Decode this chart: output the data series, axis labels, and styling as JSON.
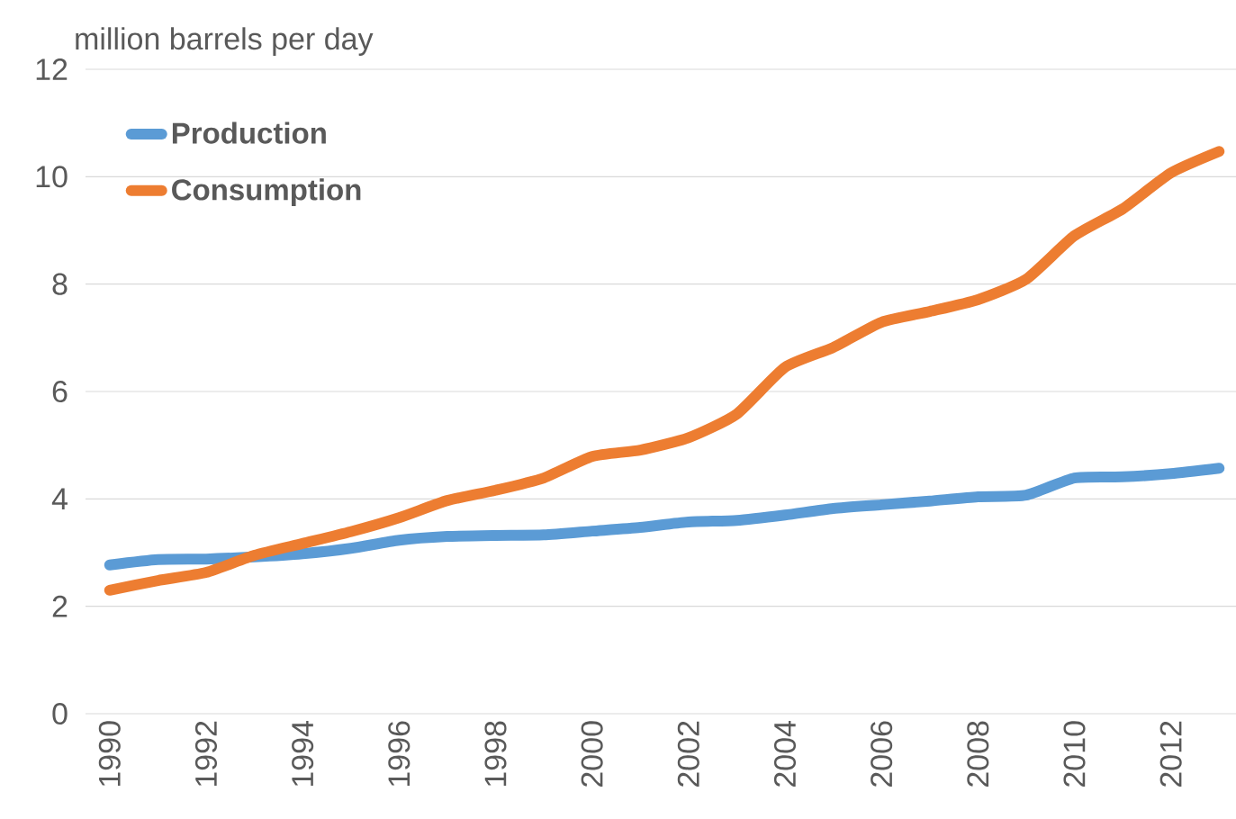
{
  "chart_data": {
    "type": "line",
    "ylabel": "million barrels per day",
    "x": [
      1990,
      1991,
      1992,
      1993,
      1994,
      1995,
      1996,
      1997,
      1998,
      1999,
      2000,
      2001,
      2002,
      2003,
      2004,
      2005,
      2006,
      2007,
      2008,
      2009,
      2010,
      2011,
      2012,
      2013
    ],
    "series": [
      {
        "name": "Production",
        "color": "#5b9bd5",
        "values": [
          2.77,
          2.87,
          2.88,
          2.92,
          2.98,
          3.08,
          3.23,
          3.3,
          3.32,
          3.33,
          3.4,
          3.47,
          3.57,
          3.6,
          3.7,
          3.82,
          3.89,
          3.96,
          4.04,
          4.07,
          4.39,
          4.41,
          4.47,
          4.57
        ]
      },
      {
        "name": "Consumption",
        "color": "#ed7d31",
        "values": [
          2.3,
          2.48,
          2.63,
          2.95,
          3.17,
          3.39,
          3.65,
          3.97,
          4.16,
          4.39,
          4.79,
          4.91,
          5.14,
          5.58,
          6.45,
          6.82,
          7.29,
          7.49,
          7.71,
          8.09,
          8.9,
          9.4,
          10.07,
          10.47
        ]
      }
    ],
    "xlim": [
      1989.5,
      2013.35
    ],
    "xticks": [
      1990,
      1992,
      1994,
      1996,
      1998,
      2000,
      2002,
      2004,
      2006,
      2008,
      2010,
      2012
    ],
    "ylim": [
      0,
      12
    ],
    "yticks": [
      0,
      2,
      4,
      6,
      8,
      10,
      12
    ],
    "grid": "y",
    "legend": "top left",
    "marker": "none",
    "line_style": "solid"
  }
}
